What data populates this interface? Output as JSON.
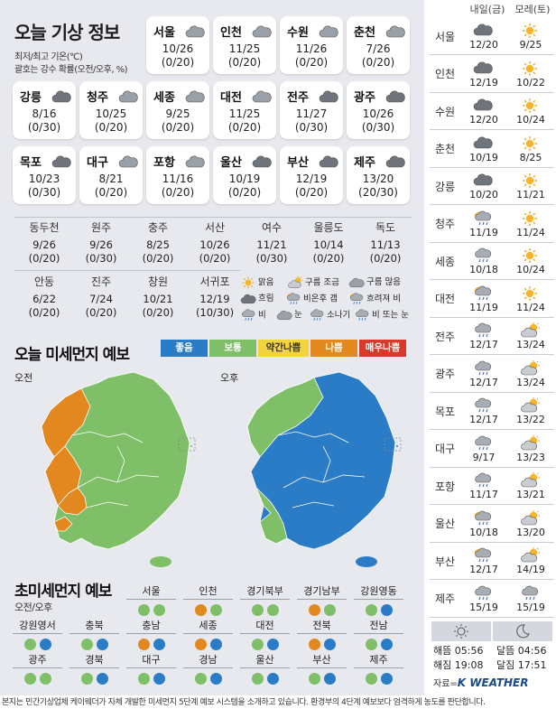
{
  "title": "오늘 기상 정보",
  "subtitle1": "최저/최고 기온(℃)",
  "subtitle2": "괄호는 강수 확률(오전/오후, %)",
  "cards": [
    {
      "name": "서울",
      "temp": "10/26",
      "prob": "(0/20)",
      "icon": "cloudy-icon"
    },
    {
      "name": "인천",
      "temp": "11/25",
      "prob": "(0/20)",
      "icon": "cloudy-icon"
    },
    {
      "name": "수원",
      "temp": "11/26",
      "prob": "(0/20)",
      "icon": "cloudy-icon"
    },
    {
      "name": "춘천",
      "temp": "7/26",
      "prob": "(0/20)",
      "icon": "cloudy-icon"
    },
    {
      "name": "강릉",
      "temp": "8/16",
      "prob": "(0/30)",
      "icon": "overcast-icon"
    },
    {
      "name": "청주",
      "temp": "10/25",
      "prob": "(0/20)",
      "icon": "cloudy-icon"
    },
    {
      "name": "세종",
      "temp": "9/25",
      "prob": "(0/20)",
      "icon": "cloudy-icon"
    },
    {
      "name": "대전",
      "temp": "11/25",
      "prob": "(0/20)",
      "icon": "cloudy-icon"
    },
    {
      "name": "전주",
      "temp": "11/27",
      "prob": "(0/30)",
      "icon": "overcast-icon"
    },
    {
      "name": "광주",
      "temp": "10/26",
      "prob": "(0/30)",
      "icon": "overcast-icon"
    },
    {
      "name": "목포",
      "temp": "10/23",
      "prob": "(0/30)",
      "icon": "overcast-icon"
    },
    {
      "name": "대구",
      "temp": "8/21",
      "prob": "(0/20)",
      "icon": "cloudy-icon"
    },
    {
      "name": "포항",
      "temp": "11/16",
      "prob": "(0/20)",
      "icon": "cloudy-icon"
    },
    {
      "name": "울산",
      "temp": "10/19",
      "prob": "(0/20)",
      "icon": "overcast-icon"
    },
    {
      "name": "부산",
      "temp": "12/19",
      "prob": "(0/20)",
      "icon": "overcast-icon"
    },
    {
      "name": "제주",
      "temp": "13/20",
      "prob": "(20/30)",
      "icon": "overcast-icon"
    }
  ],
  "cities": [
    {
      "name": "동두천",
      "temp": "9/26",
      "prob": "(0/20)"
    },
    {
      "name": "원주",
      "temp": "9/26",
      "prob": "(0/30)"
    },
    {
      "name": "충주",
      "temp": "8/25",
      "prob": "(0/20)"
    },
    {
      "name": "서산",
      "temp": "10/26",
      "prob": "(0/20)"
    },
    {
      "name": "여수",
      "temp": "11/21",
      "prob": "(0/30)"
    },
    {
      "name": "울릉도",
      "temp": "10/14",
      "prob": "(0/20)"
    },
    {
      "name": "독도",
      "temp": "11/13",
      "prob": "(0/20)"
    },
    {
      "name": "안동",
      "temp": "6/22",
      "prob": "(0/20)"
    },
    {
      "name": "진주",
      "temp": "7/24",
      "prob": "(0/20)"
    },
    {
      "name": "창원",
      "temp": "10/21",
      "prob": "(0/20)"
    },
    {
      "name": "서귀포",
      "temp": "12/19",
      "prob": "(10/30)"
    }
  ],
  "legend": {
    "sunny": "맑음",
    "few": "구름 조금",
    "many": "구름 많음",
    "overcast": "흐림",
    "after": "비온후 갬",
    "cloudrain": "흐려져 비",
    "rain": "비",
    "snow": "눈",
    "shower": "소나기",
    "rainsnow": "비 또는 눈"
  },
  "dust_title": "오늘 미세먼지 예보",
  "dust_scale": [
    {
      "label": "좋음",
      "color": "#2a7cc7"
    },
    {
      "label": "보통",
      "color": "#7fbf67"
    },
    {
      "label": "약간나쁨",
      "color": "#f2d43d"
    },
    {
      "label": "나쁨",
      "color": "#e2881f"
    },
    {
      "label": "매우나쁨",
      "color": "#d73a2a"
    }
  ],
  "am_label": "오전",
  "pm_label": "오후",
  "fine_title": "초미세먼지 예보",
  "fine_sub": "오전/오후",
  "fine": [
    {
      "name": "서울",
      "am": "#7fbf67",
      "pm": "#7fbf67"
    },
    {
      "name": "인천",
      "am": "#e2881f",
      "pm": "#7fbf67"
    },
    {
      "name": "경기북부",
      "am": "#7fbf67",
      "pm": "#7fbf67"
    },
    {
      "name": "경기남부",
      "am": "#e2881f",
      "pm": "#7fbf67"
    },
    {
      "name": "강원영동",
      "am": "#7fbf67",
      "pm": "#2a7cc7"
    },
    {
      "name": "강원영서",
      "am": "#7fbf67",
      "pm": "#2a7cc7"
    },
    {
      "name": "충북",
      "am": "#7fbf67",
      "pm": "#2a7cc7"
    },
    {
      "name": "충남",
      "am": "#e2881f",
      "pm": "#2a7cc7"
    },
    {
      "name": "세종",
      "am": "#e2881f",
      "pm": "#2a7cc7"
    },
    {
      "name": "대전",
      "am": "#7fbf67",
      "pm": "#2a7cc7"
    },
    {
      "name": "전북",
      "am": "#e2881f",
      "pm": "#2a7cc7"
    },
    {
      "name": "전남",
      "am": "#7fbf67",
      "pm": "#2a7cc7"
    },
    {
      "name": "광주",
      "am": "#7fbf67",
      "pm": "#7fbf67"
    },
    {
      "name": "경북",
      "am": "#7fbf67",
      "pm": "#2a7cc7"
    },
    {
      "name": "대구",
      "am": "#7fbf67",
      "pm": "#2a7cc7"
    },
    {
      "name": "경남",
      "am": "#7fbf67",
      "pm": "#2a7cc7"
    },
    {
      "name": "울산",
      "am": "#7fbf67",
      "pm": "#2a7cc7"
    },
    {
      "name": "부산",
      "am": "#7fbf67",
      "pm": "#2a7cc7"
    },
    {
      "name": "제주",
      "am": "#7fbf67",
      "pm": "#2a7cc7"
    }
  ],
  "forecast_header": {
    "day1": "내일(금)",
    "day2": "모레(토)"
  },
  "forecast": [
    {
      "city": "서울",
      "d1": "12/20",
      "d2": "9/25",
      "i1": "overcast",
      "i2": "sunny"
    },
    {
      "city": "인천",
      "d1": "12/19",
      "d2": "10/22",
      "i1": "overcast",
      "i2": "sunny"
    },
    {
      "city": "수원",
      "d1": "12/20",
      "d2": "10/24",
      "i1": "overcast",
      "i2": "sunny"
    },
    {
      "city": "춘천",
      "d1": "10/19",
      "d2": "8/25",
      "i1": "overcast",
      "i2": "sunny"
    },
    {
      "city": "강릉",
      "d1": "10/20",
      "d2": "11/21",
      "i1": "overcast",
      "i2": "sunny"
    },
    {
      "city": "청주",
      "d1": "11/19",
      "d2": "11/24",
      "i1": "sunrain",
      "i2": "sunny"
    },
    {
      "city": "세종",
      "d1": "10/18",
      "d2": "10/24",
      "i1": "rain",
      "i2": "sunny"
    },
    {
      "city": "대전",
      "d1": "11/19",
      "d2": "11/24",
      "i1": "sunrain",
      "i2": "sunny"
    },
    {
      "city": "전주",
      "d1": "12/17",
      "d2": "13/24",
      "i1": "rain",
      "i2": "suncloud"
    },
    {
      "city": "광주",
      "d1": "12/17",
      "d2": "13/24",
      "i1": "rain",
      "i2": "suncloud"
    },
    {
      "city": "목포",
      "d1": "12/17",
      "d2": "13/22",
      "i1": "rain",
      "i2": "suncloud"
    },
    {
      "city": "대구",
      "d1": "9/17",
      "d2": "13/23",
      "i1": "rain",
      "i2": "suncloud"
    },
    {
      "city": "포항",
      "d1": "11/17",
      "d2": "13/21",
      "i1": "rain",
      "i2": "suncloud"
    },
    {
      "city": "울산",
      "d1": "10/18",
      "d2": "13/20",
      "i1": "sunrain",
      "i2": "suncloud"
    },
    {
      "city": "부산",
      "d1": "12/17",
      "d2": "14/19",
      "i1": "sunrain",
      "i2": "suncloud"
    },
    {
      "city": "제주",
      "d1": "15/19",
      "d2": "15/19",
      "i1": "rain",
      "i2": "rain"
    }
  ],
  "sun": {
    "rise_label": "해뜸",
    "rise": "05:56",
    "set_label": "해짐",
    "set": "19:08"
  },
  "moon": {
    "rise_label": "달뜸",
    "rise": "04:56",
    "set_label": "달짐",
    "set": "17:51"
  },
  "source_label": "자료=",
  "brand": "K WEATHER",
  "footer": "본지는 민간기상업체 케이웨더가 자체 개발한 미세먼지 5단계 예보 시스템을 소개하고 있습니다. 환경부의 4단계 예보보다 엄격하게 농도를 판단합니다."
}
